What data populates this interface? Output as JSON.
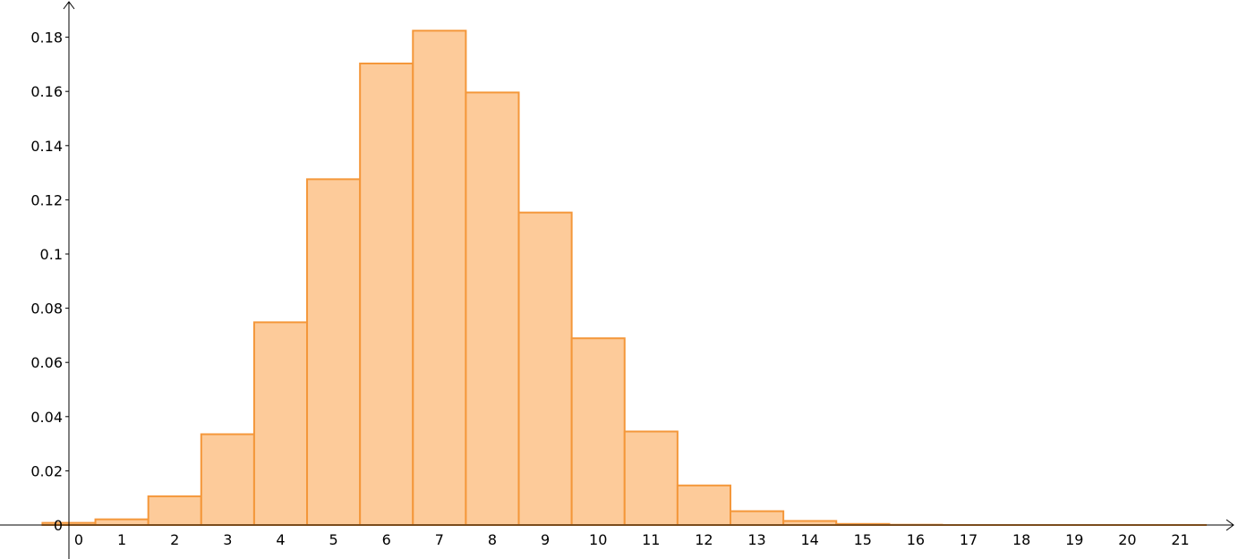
{
  "chart_data": {
    "type": "bar",
    "categories": [
      0,
      1,
      2,
      3,
      4,
      5,
      6,
      7,
      8,
      9,
      10,
      11,
      12,
      13,
      14,
      15,
      16,
      17,
      18,
      19,
      20,
      21
    ],
    "values": [
      0.0008,
      0.0021,
      0.0106,
      0.0335,
      0.0748,
      0.1276,
      0.1703,
      0.1824,
      0.1596,
      0.1153,
      0.0689,
      0.0345,
      0.0146,
      0.0051,
      0.0015,
      0.0004,
      0.0001,
      0.0,
      0.0,
      0.0,
      0.0,
      0.0
    ],
    "title": "",
    "xlabel": "",
    "ylabel": "",
    "xlim": [
      -0.5,
      21.5
    ],
    "ylim": [
      0,
      0.18
    ],
    "x_ticks": [
      "0",
      "1",
      "2",
      "3",
      "4",
      "5",
      "6",
      "7",
      "8",
      "9",
      "10",
      "11",
      "12",
      "13",
      "14",
      "15",
      "16",
      "17",
      "18",
      "19",
      "20",
      "21"
    ],
    "y_ticks": [
      "0",
      "0.02",
      "0.04",
      "0.06",
      "0.08",
      "0.1",
      "0.12",
      "0.14",
      "0.16",
      "0.18"
    ],
    "bar_fill": "#fdcb9a",
    "bar_stroke": "#f4973a",
    "grid": false,
    "legend": "none"
  }
}
